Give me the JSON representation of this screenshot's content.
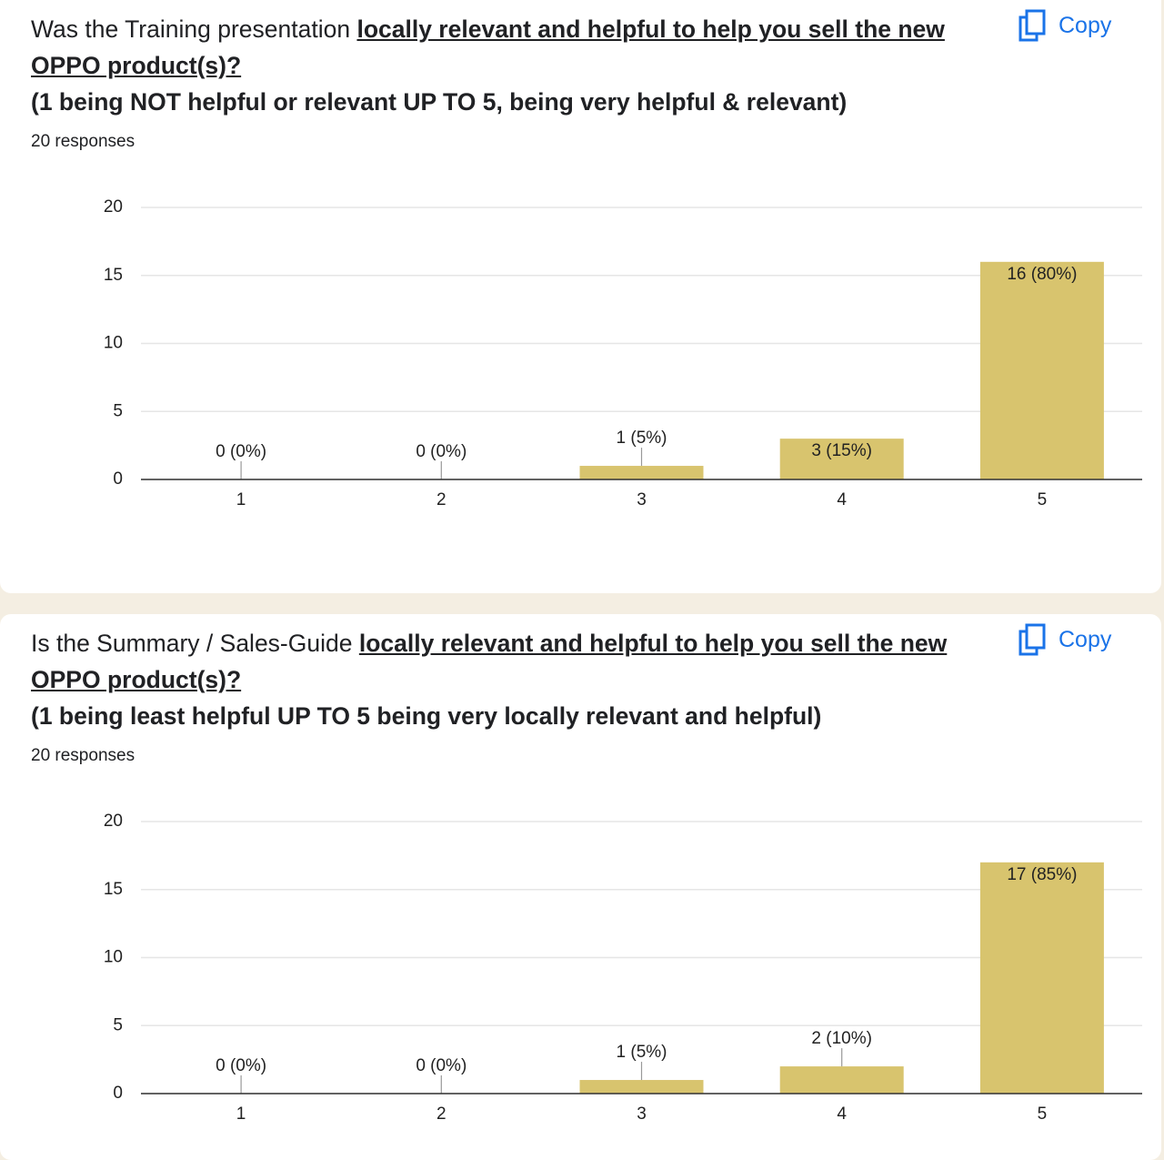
{
  "chart_data": [
    {
      "type": "bar",
      "title": "Was the Training presentation",
      "title_emphasis": "locally relevant and helpful to help you sell the new OPPO product(s)?",
      "subtitle": "(1 being NOT helpful or relevant UP TO 5, being very helpful & relevant)",
      "responses": "20 responses",
      "button": "Copy",
      "categories": [
        "1",
        "2",
        "3",
        "4",
        "5"
      ],
      "values": [
        0,
        0,
        1,
        3,
        16
      ],
      "value_labels": [
        "0 (0%)",
        "0 (0%)",
        "1 (5%)",
        "3 (15%)",
        "16 (80%)"
      ],
      "color": "#d8c46e",
      "ylim": [
        0,
        20
      ],
      "yticks": [
        0,
        5,
        10,
        15,
        20
      ],
      "grid": true
    },
    {
      "type": "bar",
      "title": "Is the Summary / Sales-Guide",
      "title_emphasis": "locally relevant and helpful to help you sell the new OPPO product(s)?",
      "subtitle": "(1 being least helpful UP TO 5 being very locally relevant and helpful)",
      "responses": "20 responses",
      "button": "Copy",
      "categories": [
        "1",
        "2",
        "3",
        "4",
        "5"
      ],
      "values": [
        0,
        0,
        1,
        2,
        17
      ],
      "value_labels": [
        "0 (0%)",
        "0 (0%)",
        "1 (5%)",
        "2 (10%)",
        "17 (85%)"
      ],
      "color": "#d8c46e",
      "ylim": [
        0,
        20
      ],
      "yticks": [
        0,
        5,
        10,
        15,
        20
      ],
      "grid": true
    }
  ]
}
